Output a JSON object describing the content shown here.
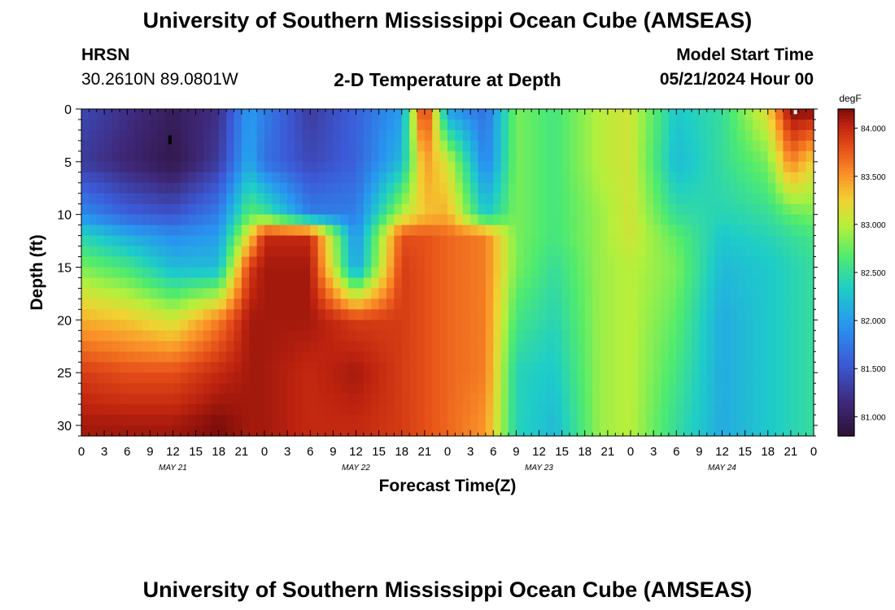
{
  "header": {
    "title": "University of Southern Mississippi Ocean Cube (AMSEAS)",
    "station": "HRSN",
    "coords": "30.2610N  89.0801W",
    "plot_title": "2-D Temperature at Depth",
    "model_start_label": "Model Start Time",
    "model_start_value": "05/21/2024 Hour 00"
  },
  "footer": {
    "title": "University of Southern Mississippi Ocean Cube (AMSEAS)"
  },
  "chart_data": {
    "type": "heatmap",
    "title": "2-D Temperature at Depth",
    "xlabel": "Forecast Time(Z)",
    "ylabel": "Depth (ft)",
    "x_tick_labels": [
      "0",
      "3",
      "6",
      "9",
      "12",
      "15",
      "18",
      "21",
      "0",
      "3",
      "6",
      "9",
      "12",
      "15",
      "18",
      "21",
      "0",
      "3",
      "6",
      "9",
      "12",
      "15",
      "18",
      "21",
      "0",
      "3",
      "6",
      "9",
      "12",
      "15",
      "18",
      "21",
      "0"
    ],
    "date_labels": [
      "MAY 21",
      "MAY 22",
      "MAY 23",
      "MAY 24"
    ],
    "xlim_hours": [
      0,
      96
    ],
    "ylim_ft": [
      0,
      31
    ],
    "y_ticks": [
      0,
      5,
      10,
      15,
      20,
      25,
      30
    ],
    "colorbar": {
      "unit": "degF",
      "range": [
        80.8,
        84.2
      ],
      "ticks": [
        "84.000",
        "83.500",
        "83.000",
        "82.500",
        "82.000",
        "81.500",
        "81.000"
      ],
      "tick_values": [
        84.0,
        83.5,
        83.0,
        82.5,
        82.0,
        81.5,
        81.0
      ]
    },
    "depth_profiles_ft": [
      0,
      5,
      10,
      12,
      15,
      20,
      25,
      30
    ],
    "temperature_keyframes": [
      {
        "hour": 0,
        "temps": [
          81.4,
          81.3,
          81.9,
          82.4,
          82.8,
          83.4,
          83.9,
          84.1
        ]
      },
      {
        "hour": 6,
        "temps": [
          81.2,
          81.1,
          81.6,
          82.1,
          82.6,
          83.3,
          83.8,
          84.1
        ]
      },
      {
        "hour": 12,
        "temps": [
          81.0,
          80.9,
          81.5,
          81.9,
          82.2,
          83.1,
          83.8,
          84.1
        ]
      },
      {
        "hour": 18,
        "temps": [
          81.2,
          81.3,
          81.8,
          82.0,
          82.2,
          83.6,
          84.0,
          84.2
        ]
      },
      {
        "hour": 22,
        "temps": [
          82.0,
          82.1,
          82.7,
          83.2,
          83.9,
          84.1,
          84.1,
          84.1
        ]
      },
      {
        "hour": 24,
        "temps": [
          81.8,
          81.7,
          82.6,
          84.0,
          84.1,
          84.1,
          84.1,
          84.1
        ]
      },
      {
        "hour": 30,
        "temps": [
          81.3,
          81.4,
          81.8,
          84.0,
          84.1,
          84.1,
          84.0,
          84.0
        ]
      },
      {
        "hour": 36,
        "temps": [
          81.6,
          81.6,
          81.8,
          81.9,
          82.0,
          83.9,
          84.1,
          84.0
        ]
      },
      {
        "hour": 42,
        "temps": [
          82.0,
          82.2,
          83.0,
          83.8,
          83.9,
          83.9,
          83.9,
          83.9
        ]
      },
      {
        "hour": 45,
        "temps": [
          84.1,
          83.5,
          83.3,
          83.8,
          83.8,
          83.8,
          83.8,
          83.8
        ]
      },
      {
        "hour": 48,
        "temps": [
          82.0,
          83.1,
          83.4,
          83.7,
          83.7,
          83.7,
          83.7,
          83.7
        ]
      },
      {
        "hour": 53,
        "temps": [
          81.7,
          81.8,
          82.3,
          83.6,
          83.6,
          83.6,
          83.6,
          83.5
        ]
      },
      {
        "hour": 57,
        "temps": [
          82.8,
          82.8,
          82.8,
          82.8,
          82.8,
          82.6,
          82.4,
          82.4
        ]
      },
      {
        "hour": 62,
        "temps": [
          82.6,
          82.6,
          82.6,
          82.6,
          82.5,
          82.4,
          82.3,
          82.2
        ]
      },
      {
        "hour": 68,
        "temps": [
          83.0,
          83.0,
          82.9,
          82.9,
          82.9,
          82.9,
          82.9,
          82.9
        ]
      },
      {
        "hour": 72,
        "temps": [
          83.1,
          83.1,
          83.1,
          83.1,
          83.0,
          83.0,
          83.0,
          83.0
        ]
      },
      {
        "hour": 78,
        "temps": [
          82.3,
          82.2,
          82.5,
          82.7,
          82.8,
          82.7,
          82.6,
          82.5
        ]
      },
      {
        "hour": 84,
        "temps": [
          82.5,
          82.5,
          82.4,
          82.3,
          82.2,
          82.1,
          82.1,
          82.1
        ]
      },
      {
        "hour": 90,
        "temps": [
          83.2,
          82.8,
          82.5,
          82.4,
          82.3,
          82.3,
          82.3,
          82.3
        ]
      },
      {
        "hour": 93,
        "temps": [
          84.2,
          83.6,
          82.7,
          82.5,
          82.4,
          82.4,
          82.4,
          82.4
        ]
      },
      {
        "hour": 96,
        "temps": [
          84.2,
          83.2,
          82.8,
          82.6,
          82.5,
          82.5,
          82.5,
          82.5
        ]
      }
    ]
  }
}
